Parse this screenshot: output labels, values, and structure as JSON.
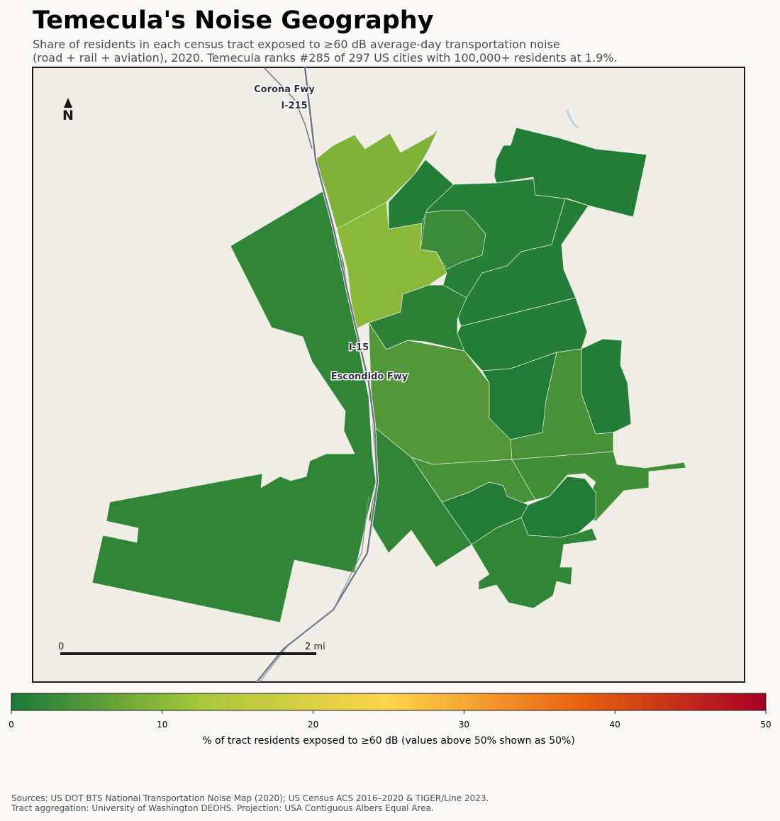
{
  "chart_data": {
    "type": "choropleth",
    "title": "Temecula's Noise Geography",
    "subtitle": [
      "Share of residents in each census tract exposed to ≥60 dB average-day transportation noise",
      "(road + rail + aviation), 2020. Temecula ranks #285 of 297 US cities with 100,000+ residents at 1.9%."
    ],
    "values": [
      2,
      9,
      10,
      5,
      1,
      1.2,
      3,
      0.8,
      1,
      1.5,
      0.9,
      0.5,
      4,
      1,
      4,
      3.5,
      0.5,
      0.7,
      2,
      2
    ],
    "colormap": [
      "#1a7837",
      "#a6c83a",
      "#fed44d",
      "#e8640f",
      "#a50026"
    ],
    "colorbar_lim": [
      0,
      50
    ],
    "colorbar_ticks": [
      0,
      10,
      20,
      30,
      40,
      50
    ],
    "colorbar_label": "% of tract residents exposed to ≥60 dB (values above 50% shown as 50%)",
    "road_labels": [
      "Corona Fwy",
      "I-215",
      "I-15",
      "Escondido Fwy"
    ],
    "north_label": "N",
    "scale_labels": [
      "0",
      "2 mi"
    ],
    "sources": [
      "Sources: US DOT BTS National Transportation Noise Map (2020); US Census ACS 2016–2020 & TIGER/Line 2023.",
      "Tract aggregation: University of Washington DEOHS. Projection: USA Contiguous Albers Equal Area."
    ]
  }
}
